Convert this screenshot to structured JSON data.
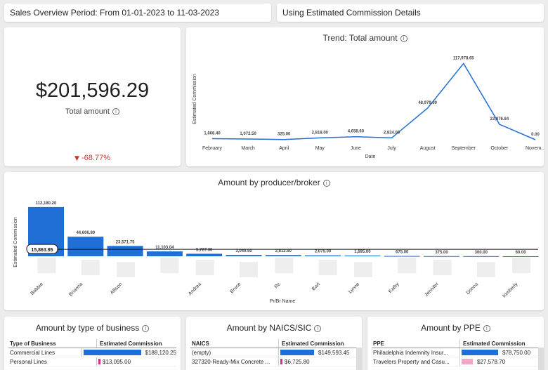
{
  "header": {
    "period": "Sales Overview Period: From 01-01-2023 to 11-03-2023",
    "estimate": "Using Estimated Commission Details"
  },
  "kpi": {
    "value": "$201,596.29",
    "label": "Total amount",
    "change": "-68.77%"
  },
  "info_icon": "i",
  "trend": {
    "title": "Trend: Total amount",
    "ylabel": "Estimated Commission",
    "xlabel": "Date"
  },
  "producer": {
    "title": "Amount by producer/broker",
    "ylabel": "Estimated Commission",
    "xlabel": "Pr/Br Name",
    "avg_label": "15,863.95"
  },
  "type_table": {
    "title": "Amount by type of business",
    "col1": "Type of Business",
    "col2": "Estimated Commission",
    "rows": [
      {
        "name": "Commercial Lines",
        "value": "$188,120.25"
      },
      {
        "name": "Personal Lines",
        "value": "$13,095.00"
      }
    ]
  },
  "naics_table": {
    "title": "Amount by NAICS/SIC",
    "col1": "NAICS",
    "col2": "Estimated Commission",
    "rows": [
      {
        "name": "(empty)",
        "value": "$149,593.45"
      },
      {
        "name": "327320-Ready-Mix Concrete ...",
        "value": "$6,725.80"
      }
    ]
  },
  "ppe_table": {
    "title": "Amount by PPE",
    "col1": "PPE",
    "col2": "Estimated Commission",
    "rows": [
      {
        "name": "Philadelphia Indemnity Insur...",
        "value": "$78,750.00"
      },
      {
        "name": "Travelers Property and Casu...",
        "value": "$27,578.70"
      }
    ]
  },
  "colors": {
    "line": "#1f6fd6",
    "bar": "#1f6fd6",
    "negative": "#c0392b",
    "pink": "#d63384",
    "lightpink": "#f4a6c6"
  },
  "chart_data": [
    {
      "type": "line",
      "categories": [
        "February",
        "March",
        "April",
        "May",
        "June",
        "July",
        "August",
        "September",
        "October",
        "November"
      ],
      "category_labels": [
        "February",
        "March",
        "April",
        "May",
        "June",
        "July",
        "August",
        "September",
        "October",
        "Novem..."
      ],
      "values": [
        1668.4,
        1072.5,
        325.0,
        2818.0,
        4658.6,
        2824.0,
        48979.3,
        117978.65,
        23876.84,
        0.0
      ],
      "labels": [
        "1,668.40",
        "1,072.50",
        "325.00",
        "2,818.00",
        "4,658.60",
        "2,824.00",
        "48,979.30",
        "117,978.65",
        "23,876.84",
        "0.00"
      ],
      "title": "Trend: Total amount",
      "xlabel": "Date",
      "ylabel": "Estimated Commission",
      "ylim": [
        0,
        125000
      ]
    },
    {
      "type": "bar",
      "categories": [
        "Bobbie",
        "Brianna",
        "Allison",
        "",
        "Andrea",
        "Bruce",
        "Rc",
        "Bart",
        "Lynne",
        "Kathy",
        "Jennifer",
        "Donna",
        "Kimberly"
      ],
      "values": [
        112180.2,
        44606.8,
        23571.75,
        11103.04,
        5727.3,
        3049.5,
        2812.5,
        2075.0,
        1695.0,
        675.0,
        375.0,
        300.0,
        60.0
      ],
      "labels": [
        "112,180.20",
        "44,606.80",
        "23,571.75",
        "11,103.04",
        "5,727.30",
        "3,049.50",
        "2,812.50",
        "2,075.00",
        "1,695.00",
        "675.00",
        "375.00",
        "300.00",
        "60.00"
      ],
      "average": 15863.95,
      "title": "Amount by producer/broker",
      "xlabel": "Pr/Br Name",
      "ylabel": "Estimated Commission",
      "ylim": [
        0,
        120000
      ]
    }
  ]
}
